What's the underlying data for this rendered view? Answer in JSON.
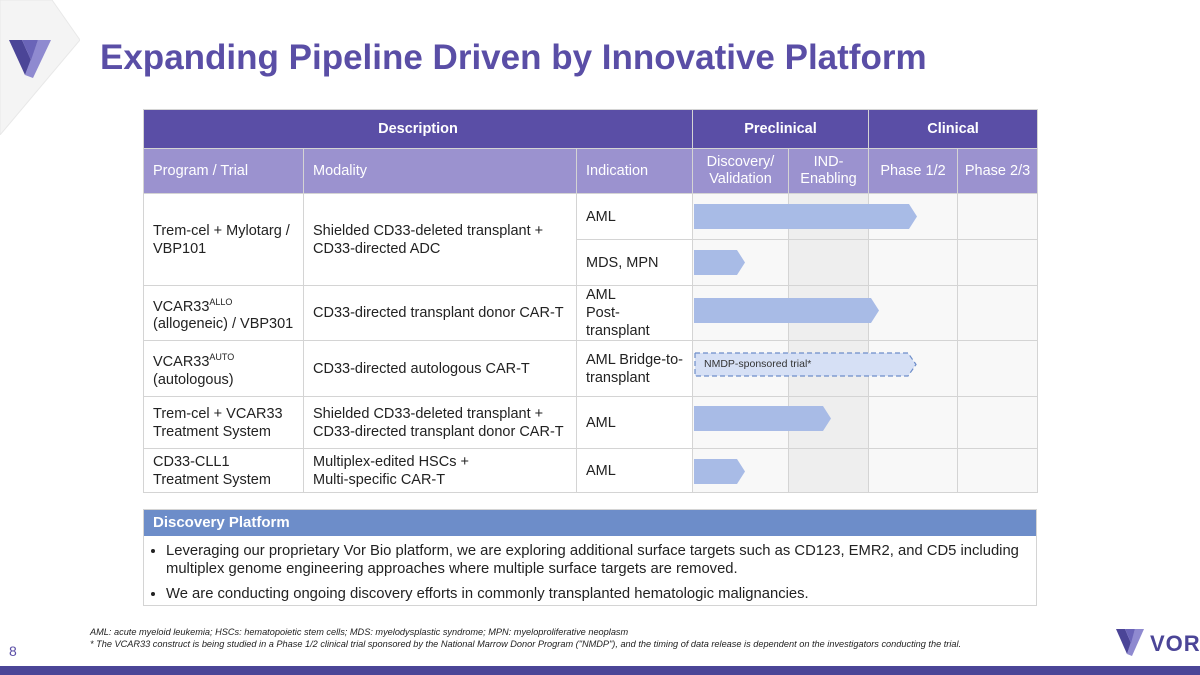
{
  "title": "Expanding Pipeline Driven by Innovative Platform",
  "page_number": "8",
  "colors": {
    "brand_purple": "#5a4ea6",
    "header_light": "#9b92cf",
    "bar_blue": "#a8bbe6",
    "discovery_blue": "#6d8dc9"
  },
  "table": {
    "group_headers": {
      "description": "Description",
      "preclinical": "Preclinical",
      "clinical": "Clinical"
    },
    "columns": {
      "program": "Program / Trial",
      "modality": "Modality",
      "indication": "Indication",
      "discovery": "Discovery/ Validation",
      "ind": "IND-Enabling",
      "phase12": "Phase 1/2",
      "phase23": "Phase 2/3"
    },
    "rows": [
      {
        "program": "Trem-cel + Mylotarg / VBP101",
        "modality": "Shielded CD33-deleted transplant + CD33-directed ADC",
        "indications": [
          "AML",
          "MDS, MPN"
        ],
        "progress": [
          0.65,
          0.15
        ]
      },
      {
        "program_main": "VCAR33",
        "program_sup": "ALLO",
        "program_rest": "(allogeneic) / VBP301",
        "modality": "CD33-directed transplant donor CAR-T",
        "indication_line1": "AML",
        "indication_line2": "Post-transplant",
        "progress": 0.54
      },
      {
        "program_main": "VCAR33",
        "program_sup": "AUTO",
        "program_rest": "(autologous)",
        "modality": "CD33-directed autologous CAR-T",
        "indication_line1": "AML Bridge-to-",
        "indication_line2": "transplant",
        "progress": 0.65,
        "bar_label": "NMDP-sponsored trial*"
      },
      {
        "program": "Trem-cel + VCAR33 Treatment System",
        "modality": "Shielded CD33-deleted transplant + CD33-directed transplant donor CAR-T",
        "indication": "AML",
        "progress": 0.4
      },
      {
        "program": "CD33-CLL1 Treatment System",
        "modality_line1": "Multiplex-edited HSCs +",
        "modality_line2": "Multi-specific CAR-T",
        "indication": "AML",
        "progress": 0.15
      }
    ]
  },
  "discovery_platform": {
    "heading": "Discovery Platform",
    "bullets": [
      "Leveraging our proprietary Vor Bio platform, we are exploring additional surface targets such as CD123, EMR2, and CD5 including multiplex genome engineering approaches where multiple surface targets are removed.",
      "We are conducting ongoing discovery efforts in commonly transplanted hematologic malignancies."
    ]
  },
  "footnotes": [
    "AML: acute myeloid leukemia; HSCs: hematopoietic stem cells; MDS: myelodysplastic syndrome; MPN: myeloproliferative neoplasm",
    "* The VCAR33 construct is being studied in a Phase 1/2 clinical trial sponsored by the National Marrow Donor Program (\"NMDP\"), and the timing of data release is dependent on the investigators conducting the trial."
  ],
  "logo_text": "VOR"
}
